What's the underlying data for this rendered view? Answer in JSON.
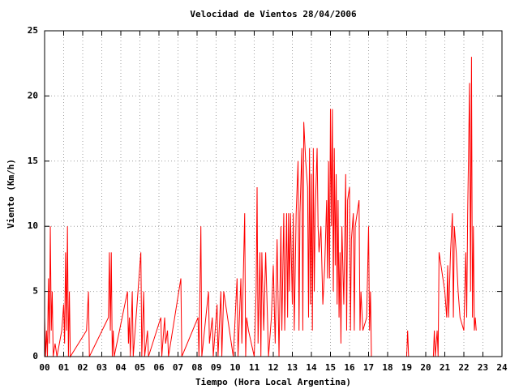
{
  "chart_data": {
    "type": "line",
    "title": "Velocidad de Vientos 28/04/2006",
    "x_label": "Tiempo (Hora Local Argentina)",
    "y_label": "Viento (Km/h)",
    "grid": true,
    "xlim": [
      0,
      24
    ],
    "ylim": [
      0,
      25
    ],
    "xticks": [
      {
        "value": 0,
        "label": "00"
      },
      {
        "value": 1,
        "label": "01"
      },
      {
        "value": 2,
        "label": "02"
      },
      {
        "value": 3,
        "label": "03"
      },
      {
        "value": 4,
        "label": "04"
      },
      {
        "value": 5,
        "label": "05"
      },
      {
        "value": 6,
        "label": "06"
      },
      {
        "value": 7,
        "label": "07"
      },
      {
        "value": 8,
        "label": "08"
      },
      {
        "value": 9,
        "label": "09"
      },
      10,
      11,
      12,
      13,
      14,
      15,
      16,
      17,
      18,
      19,
      20,
      21,
      22,
      23,
      24
    ],
    "yticks": [
      0,
      5,
      10,
      15,
      20,
      25
    ],
    "x": [
      0,
      0.05,
      0.1,
      0.15,
      0.2,
      0.25,
      0.3,
      0.35,
      0.4,
      0.45,
      0.55,
      0.65,
      0.9,
      1,
      1.05,
      1.1,
      1.15,
      1.2,
      1.25,
      1.3,
      1.35,
      2.2,
      2.3,
      2.35,
      3.35,
      3.4,
      3.45,
      3.5,
      3.55,
      3.6,
      3.65,
      4.35,
      4.4,
      4.45,
      4.5,
      4.6,
      4.65,
      5.05,
      5.1,
      5.2,
      5.25,
      5.4,
      5.45,
      6.1,
      6.15,
      6.3,
      6.35,
      6.45,
      6.5,
      7.15,
      7.2,
      8.05,
      8.1,
      8.2,
      8.25,
      8.6,
      8.65,
      8.8,
      8.85,
      9.05,
      9.1,
      9.25,
      9.3,
      9.4,
      9.5,
      9.9,
      10.1,
      10.15,
      10.3,
      10.35,
      10.5,
      10.55,
      10.6,
      10.7,
      11,
      11.1,
      11.15,
      11.2,
      11.3,
      11.35,
      11.4,
      11.5,
      11.6,
      11.75,
      11.9,
      12,
      12.1,
      12.2,
      12.3,
      12.4,
      12.45,
      12.55,
      12.6,
      12.7,
      12.75,
      12.8,
      12.85,
      12.9,
      13,
      13.05,
      13.1,
      13.2,
      13.3,
      13.35,
      13.4,
      13.5,
      13.55,
      13.6,
      13.7,
      13.8,
      13.85,
      13.9,
      13.95,
      14,
      14.05,
      14.1,
      14.15,
      14.2,
      14.3,
      14.35,
      14.4,
      14.5,
      14.6,
      14.7,
      14.8,
      14.85,
      14.9,
      14.95,
      15,
      15.05,
      15.1,
      15.15,
      15.2,
      15.25,
      15.3,
      15.35,
      15.4,
      15.45,
      15.5,
      15.55,
      15.6,
      15.7,
      15.8,
      15.85,
      15.9,
      16,
      16.05,
      16.1,
      16.2,
      16.25,
      16.3,
      16.5,
      16.55,
      16.6,
      16.7,
      16.9,
      17,
      17.05,
      17.1,
      17.15,
      19,
      19.05,
      19.1,
      20.4,
      20.45,
      20.5,
      20.6,
      20.65,
      20.7,
      21,
      21.1,
      21.15,
      21.2,
      21.3,
      21.4,
      21.45,
      21.5,
      21.6,
      21.7,
      21.8,
      22,
      22.1,
      22.15,
      22.2,
      22.3,
      22.35,
      22.4,
      22.45,
      22.5,
      22.55,
      22.6,
      22.65
    ],
    "series": [
      {
        "color": "#ff0000",
        "values": [
          3,
          0,
          2,
          0,
          6,
          1,
          10,
          2,
          5,
          0,
          1,
          0,
          2,
          4,
          1,
          8,
          2,
          10,
          0,
          5,
          0,
          2,
          5,
          0,
          3,
          8,
          2,
          8,
          0,
          2,
          0,
          5,
          1,
          3,
          0,
          5,
          0,
          8,
          0,
          5,
          0,
          2,
          0,
          3,
          0,
          3,
          1,
          2,
          0,
          6,
          0,
          3,
          0,
          10,
          0,
          5,
          1,
          3,
          0,
          4,
          0,
          5,
          0,
          5,
          4,
          0,
          6,
          0,
          6,
          1,
          11,
          0,
          3,
          2,
          0,
          5,
          13,
          1,
          8,
          0,
          8,
          2,
          8,
          0,
          3,
          7,
          1,
          9,
          0,
          10,
          2,
          11,
          2,
          11,
          3,
          11,
          5,
          11,
          4,
          11,
          2,
          11,
          15,
          2,
          11,
          16,
          2,
          18,
          15,
          13,
          3,
          16,
          4,
          14,
          2,
          16,
          5,
          11,
          16,
          10,
          8,
          10,
          4,
          7,
          12,
          6,
          15,
          6,
          19,
          10,
          19,
          5,
          16,
          7,
          14,
          4,
          12,
          3,
          8,
          1,
          10,
          4,
          14,
          2,
          12,
          13,
          2,
          9,
          11,
          2,
          10,
          12,
          2,
          5,
          2,
          3,
          10,
          2,
          5,
          0,
          0,
          2,
          0,
          0,
          2,
          0,
          2,
          0,
          8,
          5,
          3,
          7,
          3,
          8,
          11,
          3,
          10,
          8,
          5,
          3,
          2,
          8,
          3,
          11,
          21,
          5,
          23,
          3,
          10,
          2,
          3,
          2
        ]
      }
    ]
  }
}
